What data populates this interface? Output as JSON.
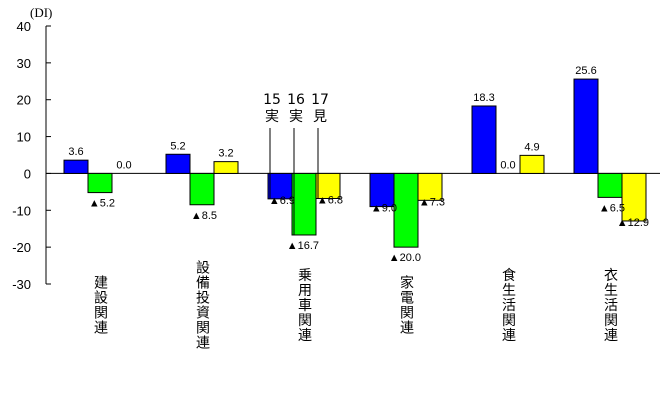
{
  "chart_data": {
    "type": "bar",
    "unit_label": "(DI)",
    "ylim": [
      -30,
      40
    ],
    "yticks": [
      "40",
      "30",
      "20",
      "10",
      "0",
      "-10",
      "-20",
      "-30"
    ],
    "categories": [
      "建設関連",
      "設備投資関連",
      "乗用車関連",
      "家電関連",
      "食生活関連",
      "衣生活関連"
    ],
    "series": [
      {
        "name": "15実",
        "color": "#0000ff",
        "values": [
          3.6,
          5.2,
          -6.9,
          -9.0,
          18.3,
          25.6
        ]
      },
      {
        "name": "16実",
        "color": "#00ff00",
        "values": [
          -5.2,
          -8.5,
          -16.7,
          -20.0,
          0.0,
          -6.5
        ]
      },
      {
        "name": "17見",
        "color": "#ffff00",
        "values": [
          0.0,
          3.2,
          -6.8,
          -7.3,
          4.9,
          -12.9
        ]
      }
    ],
    "value_labels": [
      [
        "3.6",
        "▲5.2",
        "0.0"
      ],
      [
        "5.2",
        "▲8.5",
        "3.2"
      ],
      [
        "▲6.9",
        "▲16.7",
        "▲6.8"
      ],
      [
        "▲9.0",
        "▲20.0",
        "▲7.3"
      ],
      [
        "18.3",
        "0.0",
        "4.9"
      ],
      [
        "25.6",
        "▲6.5",
        "▲12.9"
      ]
    ],
    "legend": [
      {
        "num": "15",
        "kind": "実"
      },
      {
        "num": "16",
        "kind": "実"
      },
      {
        "num": "17",
        "kind": "見"
      }
    ],
    "legend_placement": "above 乗用車関連 group",
    "grid": false
  }
}
